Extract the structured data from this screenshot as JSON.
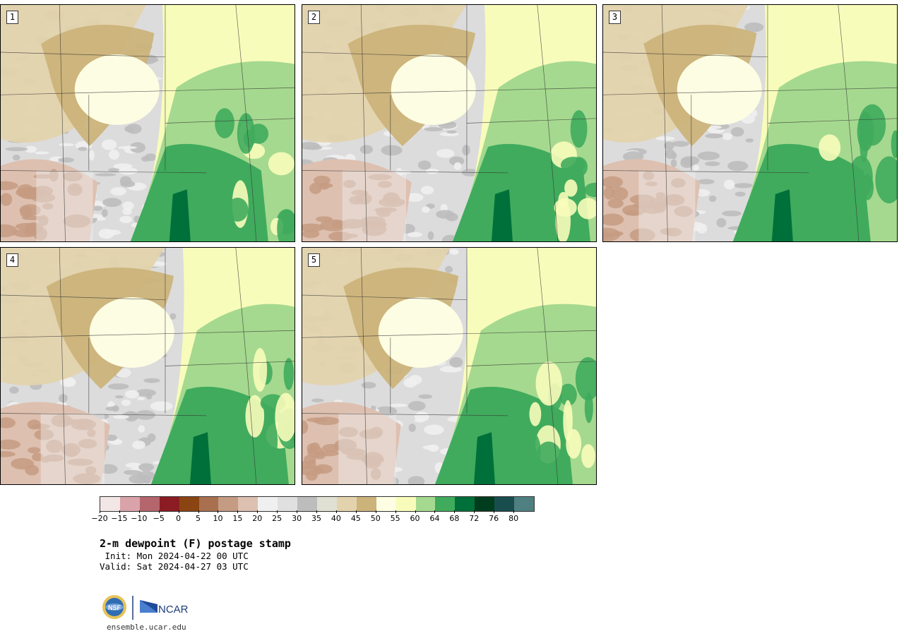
{
  "panels": [
    {
      "label": "1",
      "seed": 11,
      "front": 0.55,
      "cool_shift": 0.0
    },
    {
      "label": "2",
      "seed": 23,
      "front": 0.62,
      "cool_shift": 0.05
    },
    {
      "label": "3",
      "seed": 37,
      "front": 0.55,
      "cool_shift": 0.1
    },
    {
      "label": "4",
      "seed": 41,
      "front": 0.62,
      "cool_shift": 0.0
    },
    {
      "label": "5",
      "seed": 53,
      "front": 0.56,
      "cool_shift": 0.05
    }
  ],
  "colorbar": {
    "ticks": [
      "−20",
      "−15",
      "−10",
      "−5",
      "0",
      "5",
      "10",
      "15",
      "20",
      "25",
      "30",
      "35",
      "40",
      "45",
      "50",
      "55",
      "60",
      "64",
      "68",
      "72",
      "76",
      "80"
    ],
    "colors": [
      "#f3e6e6",
      "#d9a3a9",
      "#b5666d",
      "#8c1c24",
      "#8b4513",
      "#a9704f",
      "#c69b83",
      "#dec0b0",
      "#f0f0f0",
      "#e0e0e0",
      "#bdbdbd",
      "#e0e0d3",
      "#e3d3ad",
      "#cbb37a",
      "#fdfde3",
      "#f8fcba",
      "#a5d98f",
      "#40ab5d",
      "#00703a",
      "#003c1e",
      "#1a4d4d",
      "#4f7f80"
    ]
  },
  "title": "2-m dewpoint (F) postage stamp",
  "init": " Init: Mon 2024-04-22 00 UTC",
  "valid": "Valid: Sat 2024-04-27 03 UTC",
  "logo": {
    "left": "NSF",
    "right": "NCAR"
  },
  "url": "ensemble.ucar.edu"
}
